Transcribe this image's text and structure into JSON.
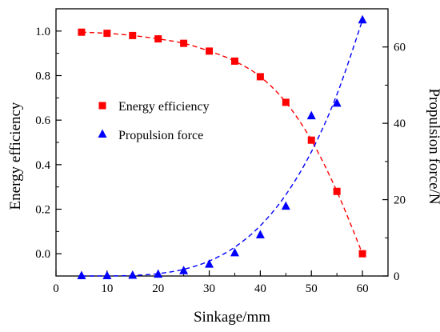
{
  "chart_data": {
    "type": "scatter",
    "x": [
      5,
      10,
      15,
      20,
      25,
      30,
      35,
      40,
      45,
      50,
      55,
      60
    ],
    "xlabel": "Sinkage/mm",
    "xlim": [
      0,
      65
    ],
    "xticks": [
      0,
      10,
      20,
      30,
      40,
      50,
      60
    ],
    "ylabel_left": "Energy efficiency",
    "ylim_left": [
      -0.1,
      1.1
    ],
    "yticks_left": [
      0.0,
      0.2,
      0.4,
      0.6,
      0.8,
      1.0
    ],
    "ytick_labels_left": [
      "0.0",
      "0.2",
      "0.4",
      "0.6",
      "0.8",
      "1.0"
    ],
    "ylabel_right": "Propulsion force/N",
    "ylim_right": [
      0,
      70
    ],
    "yticks_right": [
      0,
      20,
      40,
      60
    ],
    "legend_position": "center-left",
    "grid": false,
    "series": [
      {
        "name": "Energy efficiency",
        "axis": "left",
        "marker": "square",
        "color": "#ff0000",
        "values": [
          0.995,
          0.99,
          0.98,
          0.965,
          0.945,
          0.91,
          0.865,
          0.795,
          0.68,
          0.51,
          0.28,
          0.0
        ],
        "fit": "dashed"
      },
      {
        "name": "Propulsion force",
        "axis": "right",
        "marker": "triangle",
        "color": "#0000ff",
        "values": [
          0.0,
          0.0,
          0.1,
          0.4,
          1.3,
          3.0,
          6.0,
          10.7,
          18.2,
          41.9,
          45.2,
          67.0
        ],
        "fit": "dashed"
      }
    ]
  }
}
